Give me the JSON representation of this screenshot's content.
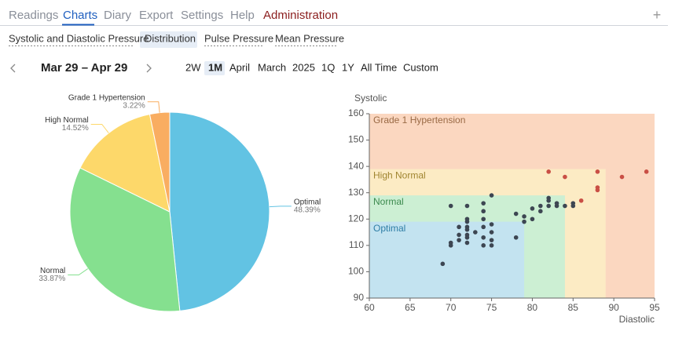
{
  "nav": {
    "tabs": [
      "Readings",
      "Charts",
      "Diary",
      "Export",
      "Settings",
      "Help",
      "Administration"
    ],
    "add": "+"
  },
  "subnav": [
    "Systolic and Diastolic Pressure",
    "Distribution",
    "Pulse Pressure",
    "Mean Pressure"
  ],
  "toolbar": {
    "range": "Mar 29 – Apr 29",
    "periods": [
      "2W",
      "1M",
      "April",
      "March",
      "2025",
      "1Q",
      "1Y",
      "All Time",
      "Custom"
    ]
  },
  "chart_data": [
    {
      "type": "pie",
      "categories": [
        "Optimal",
        "Normal",
        "High Normal",
        "Grade 1 Hypertension"
      ],
      "values": [
        48.39,
        33.87,
        14.52,
        3.22
      ],
      "value_labels": [
        "48.39%",
        "33.87%",
        "14.52%",
        "3.22%"
      ],
      "colors": [
        "#62c3e3",
        "#85e08f",
        "#fdd86a",
        "#f9ad61"
      ]
    },
    {
      "type": "scatter",
      "y_label": "Systolic",
      "x_label": "Diastolic",
      "xlim": [
        60,
        95
      ],
      "xticks": [
        60,
        65,
        70,
        75,
        80,
        85,
        90,
        95
      ],
      "ylim": [
        90,
        160
      ],
      "yticks": [
        90,
        100,
        110,
        120,
        130,
        140,
        150,
        160
      ],
      "zones": [
        {
          "name": "Grade 1 Hypertension",
          "color": "#fbd7c0",
          "label_color": "#9a6a45",
          "xlim": [
            60,
            95
          ],
          "ylim": [
            90,
            160
          ]
        },
        {
          "name": "High Normal",
          "color": "#fcebc4",
          "label_color": "#a08530",
          "xlim": [
            60,
            89
          ],
          "ylim": [
            90,
            139
          ]
        },
        {
          "name": "Normal",
          "color": "#ccefd3",
          "label_color": "#3c8a4e",
          "xlim": [
            60,
            84
          ],
          "ylim": [
            90,
            129
          ]
        },
        {
          "name": "Optimal",
          "color": "#c3e3f0",
          "label_color": "#2f7ea6",
          "xlim": [
            60,
            79
          ],
          "ylim": [
            90,
            119
          ]
        }
      ],
      "series": [
        {
          "color": "#3d4652",
          "x": [
            69,
            70,
            70,
            70,
            71,
            71,
            71,
            72,
            72,
            72,
            72,
            72,
            72,
            72,
            72,
            73,
            74,
            74,
            74,
            74,
            74,
            74,
            75,
            75,
            75,
            75,
            75,
            78,
            78,
            79,
            79,
            80,
            80,
            81,
            81,
            82,
            82,
            82,
            83,
            83,
            84,
            85,
            85
          ],
          "values": [
            103,
            125,
            111,
            110,
            117,
            114,
            112,
            125,
            120,
            119,
            117,
            116,
            114,
            113,
            111,
            115,
            110,
            113,
            123,
            126,
            117,
            120,
            118,
            129,
            115,
            110,
            112,
            122,
            113,
            119,
            121,
            124,
            120,
            123,
            125,
            128,
            127,
            125,
            126,
            125,
            125,
            126,
            125
          ]
        },
        {
          "color": "#c94f45",
          "x": [
            82,
            84,
            86,
            88,
            88,
            88,
            91,
            94
          ],
          "values": [
            138,
            136,
            127,
            138,
            132,
            131,
            136,
            138
          ]
        }
      ]
    }
  ]
}
